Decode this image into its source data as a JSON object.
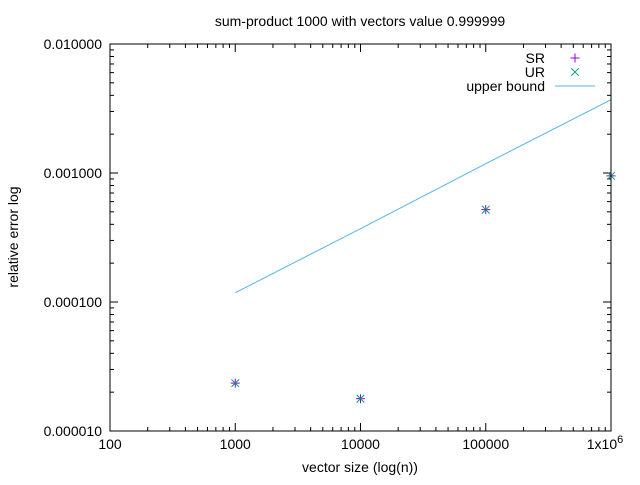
{
  "chart_data": {
    "type": "scatter",
    "title": "sum-product 1000 with vectors value 0.999999",
    "xlabel": "vector size (log(n))",
    "ylabel": "relative error log",
    "x_scale": "log",
    "y_scale": "log",
    "xlim": [
      100,
      1000000
    ],
    "ylim": [
      1e-05,
      0.01
    ],
    "x_ticks": [
      {
        "value": 100,
        "label": "100"
      },
      {
        "value": 1000,
        "label": "1000"
      },
      {
        "value": 10000,
        "label": "10000"
      },
      {
        "value": 100000,
        "label": "100000"
      },
      {
        "value": 1000000,
        "label": "1x10",
        "sup": "6"
      }
    ],
    "y_ticks": [
      {
        "value": 1e-05,
        "label": "0.000010"
      },
      {
        "value": 0.0001,
        "label": "0.000100"
      },
      {
        "value": 0.001,
        "label": "0.001000"
      },
      {
        "value": 0.01,
        "label": "0.010000"
      }
    ],
    "grid": false,
    "legend_position": "top-right",
    "series": [
      {
        "name": "SR",
        "marker": "plus",
        "color": "#9400d3",
        "x": [
          1000,
          10000,
          100000,
          1000000
        ],
        "y": [
          2.35e-05,
          1.78e-05,
          0.00052,
          0.00095
        ]
      },
      {
        "name": "UR",
        "marker": "cross",
        "color": "#009e73",
        "x": [
          1000,
          10000,
          100000,
          1000000
        ],
        "y": [
          2.35e-05,
          1.78e-05,
          0.00052,
          0.00095
        ]
      },
      {
        "name": "upper bound",
        "marker": "line",
        "color": "#56b4e9",
        "x": [
          1000,
          10000,
          100000,
          1000000
        ],
        "y": [
          0.000118,
          0.00037,
          0.00118,
          0.0037
        ]
      }
    ]
  }
}
